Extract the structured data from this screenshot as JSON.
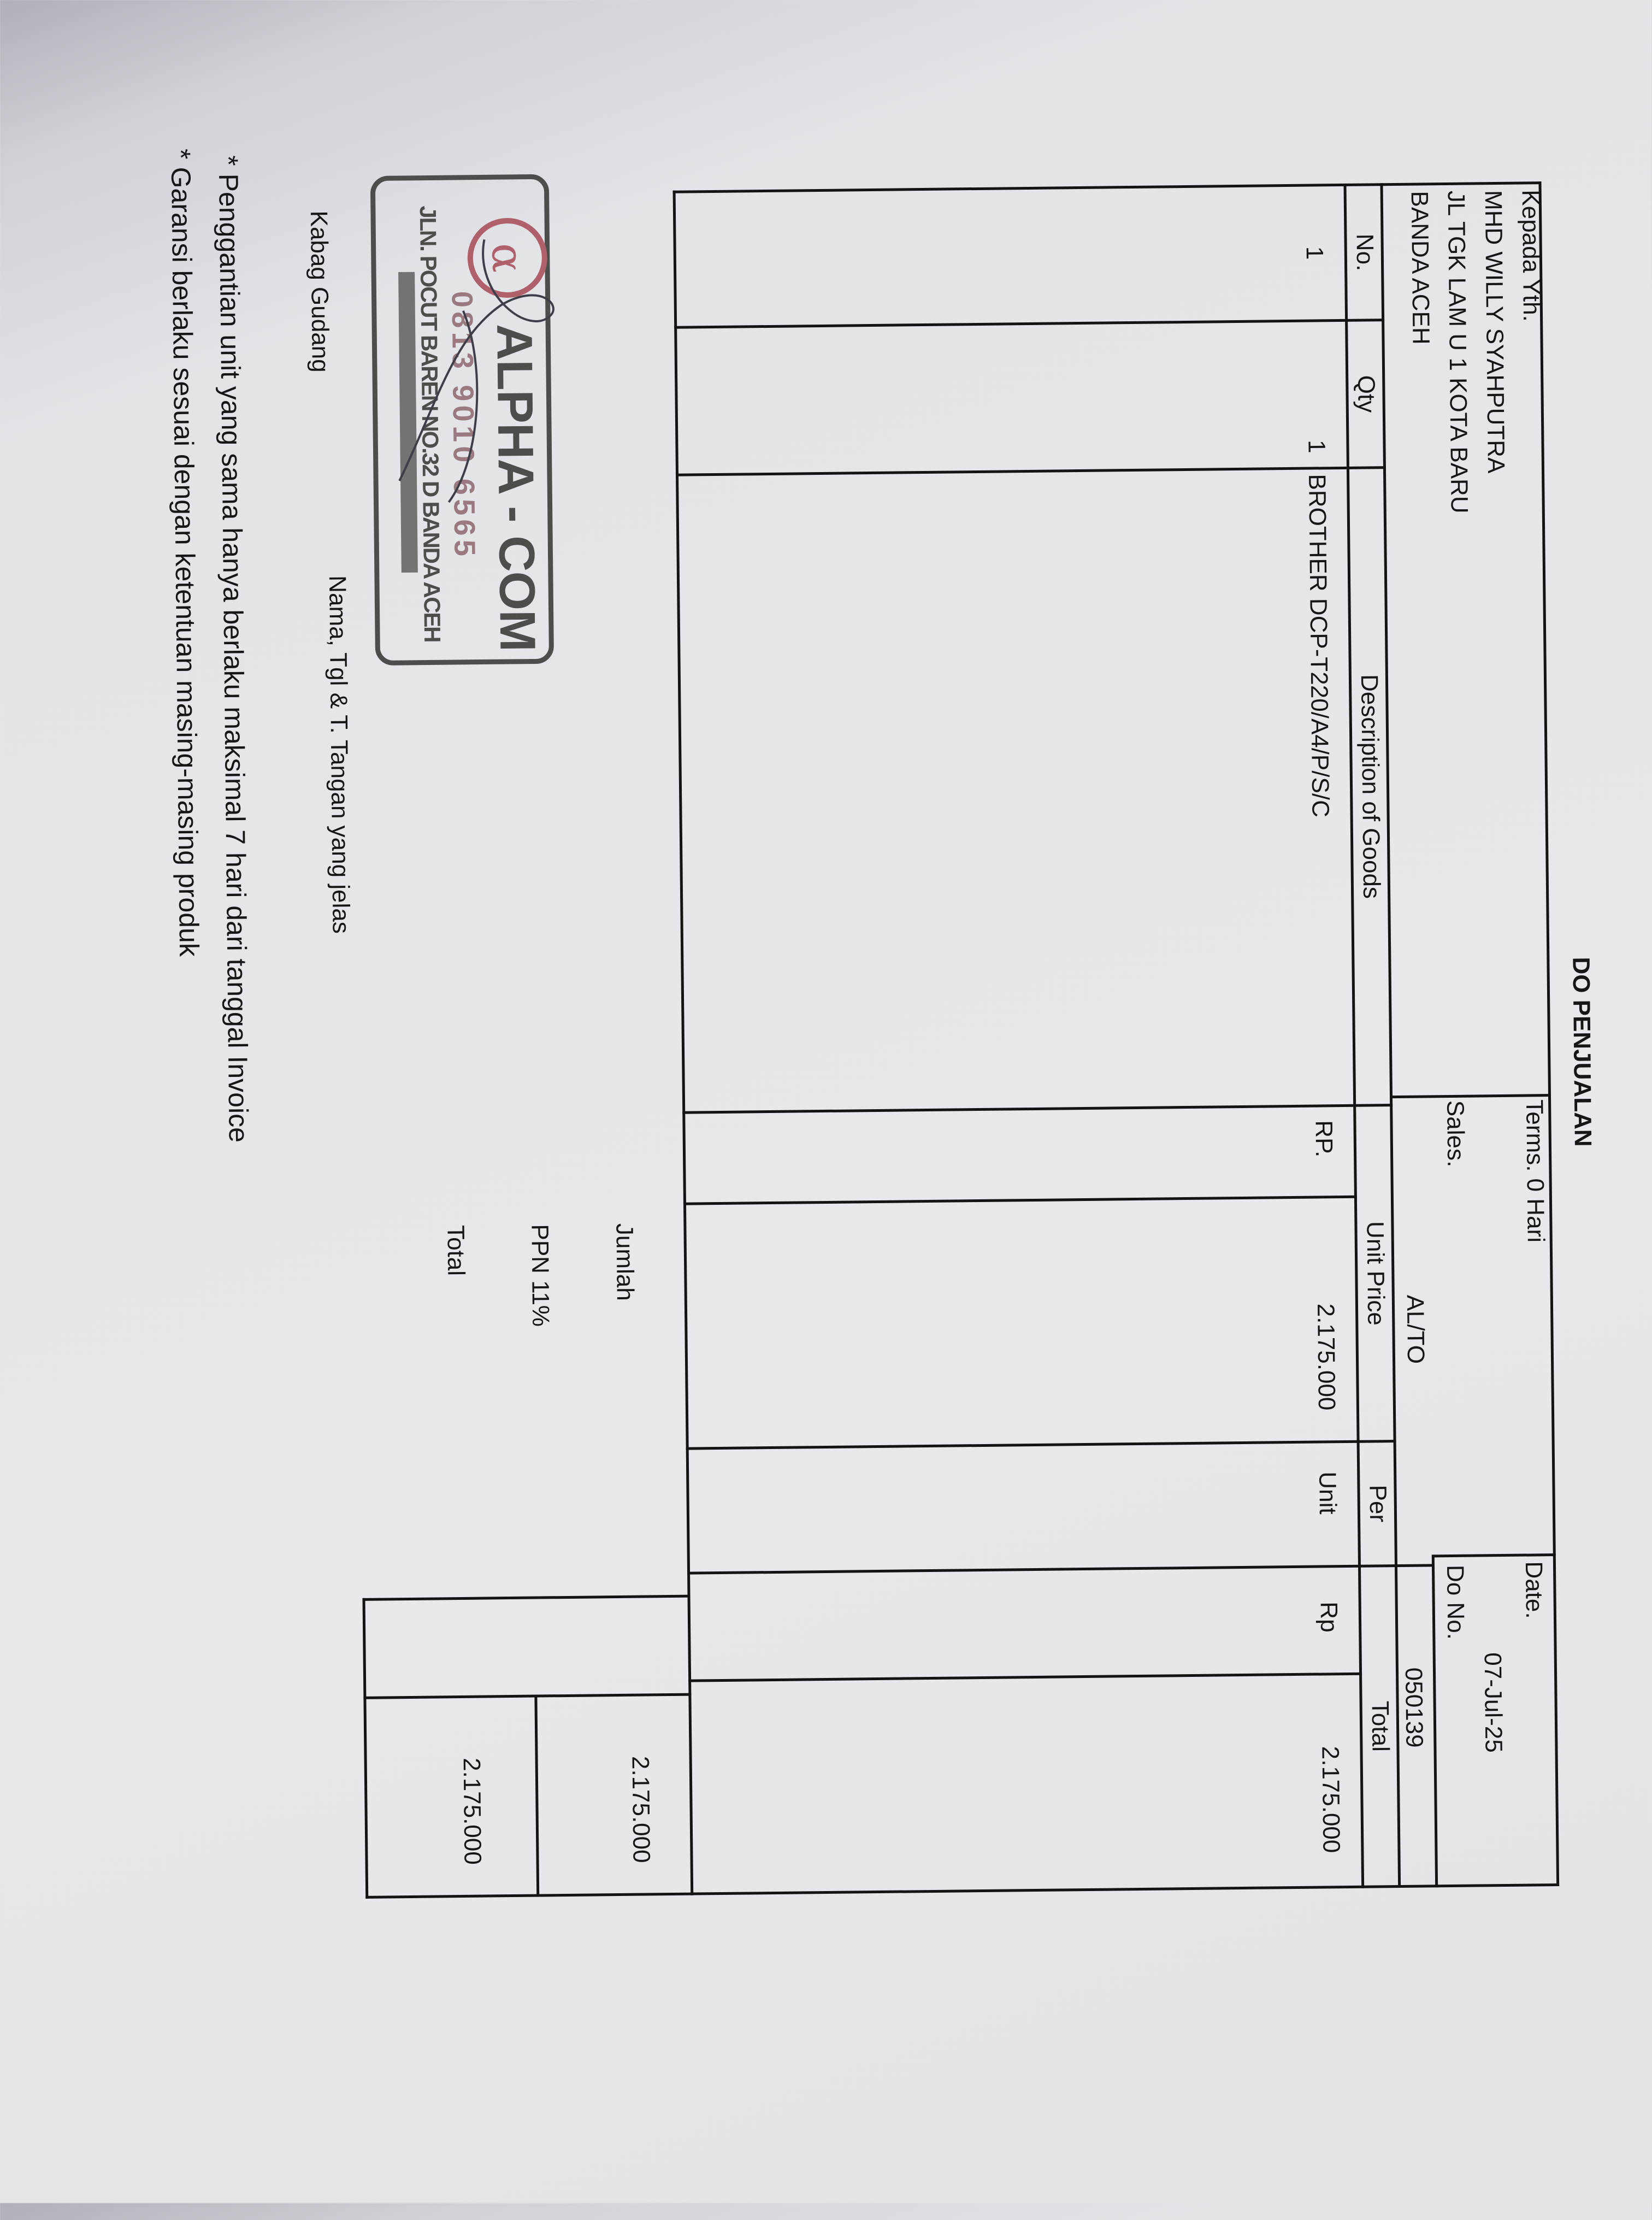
{
  "document": {
    "title": "DO PENJUALAN"
  },
  "recipient": {
    "label": "Kepada Yth.",
    "name": "MHD WILLY SYAHPUTRA",
    "address": "JL TGK LAM U 1 KOTA BARU",
    "city": "BANDA ACEH"
  },
  "header": {
    "terms": "Terms. 0 Hari",
    "sales_label": "Sales.",
    "sales_value": "AL/TO",
    "date_label": "Date.",
    "date_value": "07-Jul-25",
    "do_no_label": "Do No.",
    "do_no_value": "050139"
  },
  "columns": [
    "No.",
    "Qty",
    "Description of Goods",
    "Unit Price",
    "Per",
    "Total"
  ],
  "items": [
    {
      "no": "1",
      "qty": "1",
      "description": "BROTHER DCP-T220/A4/P/S/C",
      "currency": "RP.",
      "unit_price": "2.175.000",
      "per": "Unit",
      "total_currency": "Rp",
      "total": "2.175.000"
    }
  ],
  "summary": {
    "jumlah_label": "Jumlah",
    "jumlah_value": "2.175.000",
    "ppn_label": "PPN 11%",
    "total_label": "Total",
    "total_value": "2.175.000"
  },
  "signature": {
    "role": "Kabag Gudang",
    "instruction": "Nama, Tgl & T. Tangan yang jelas"
  },
  "stamp": {
    "company": "ALPHA - COM",
    "phone": "0813 9010 6565",
    "address": "JLN. POCUT BAREN NO.32 D BANDA ACEH",
    "ink_color": "#4a4f4c",
    "logo_color": "#b0606a"
  },
  "notes": [
    "* Penggantian unit yang sama hanya berlaku maksimal 7 hari dari tanggal Invoice",
    "* Garansi berlaku sesuai dengan ketentuan masing-masing produk"
  ]
}
